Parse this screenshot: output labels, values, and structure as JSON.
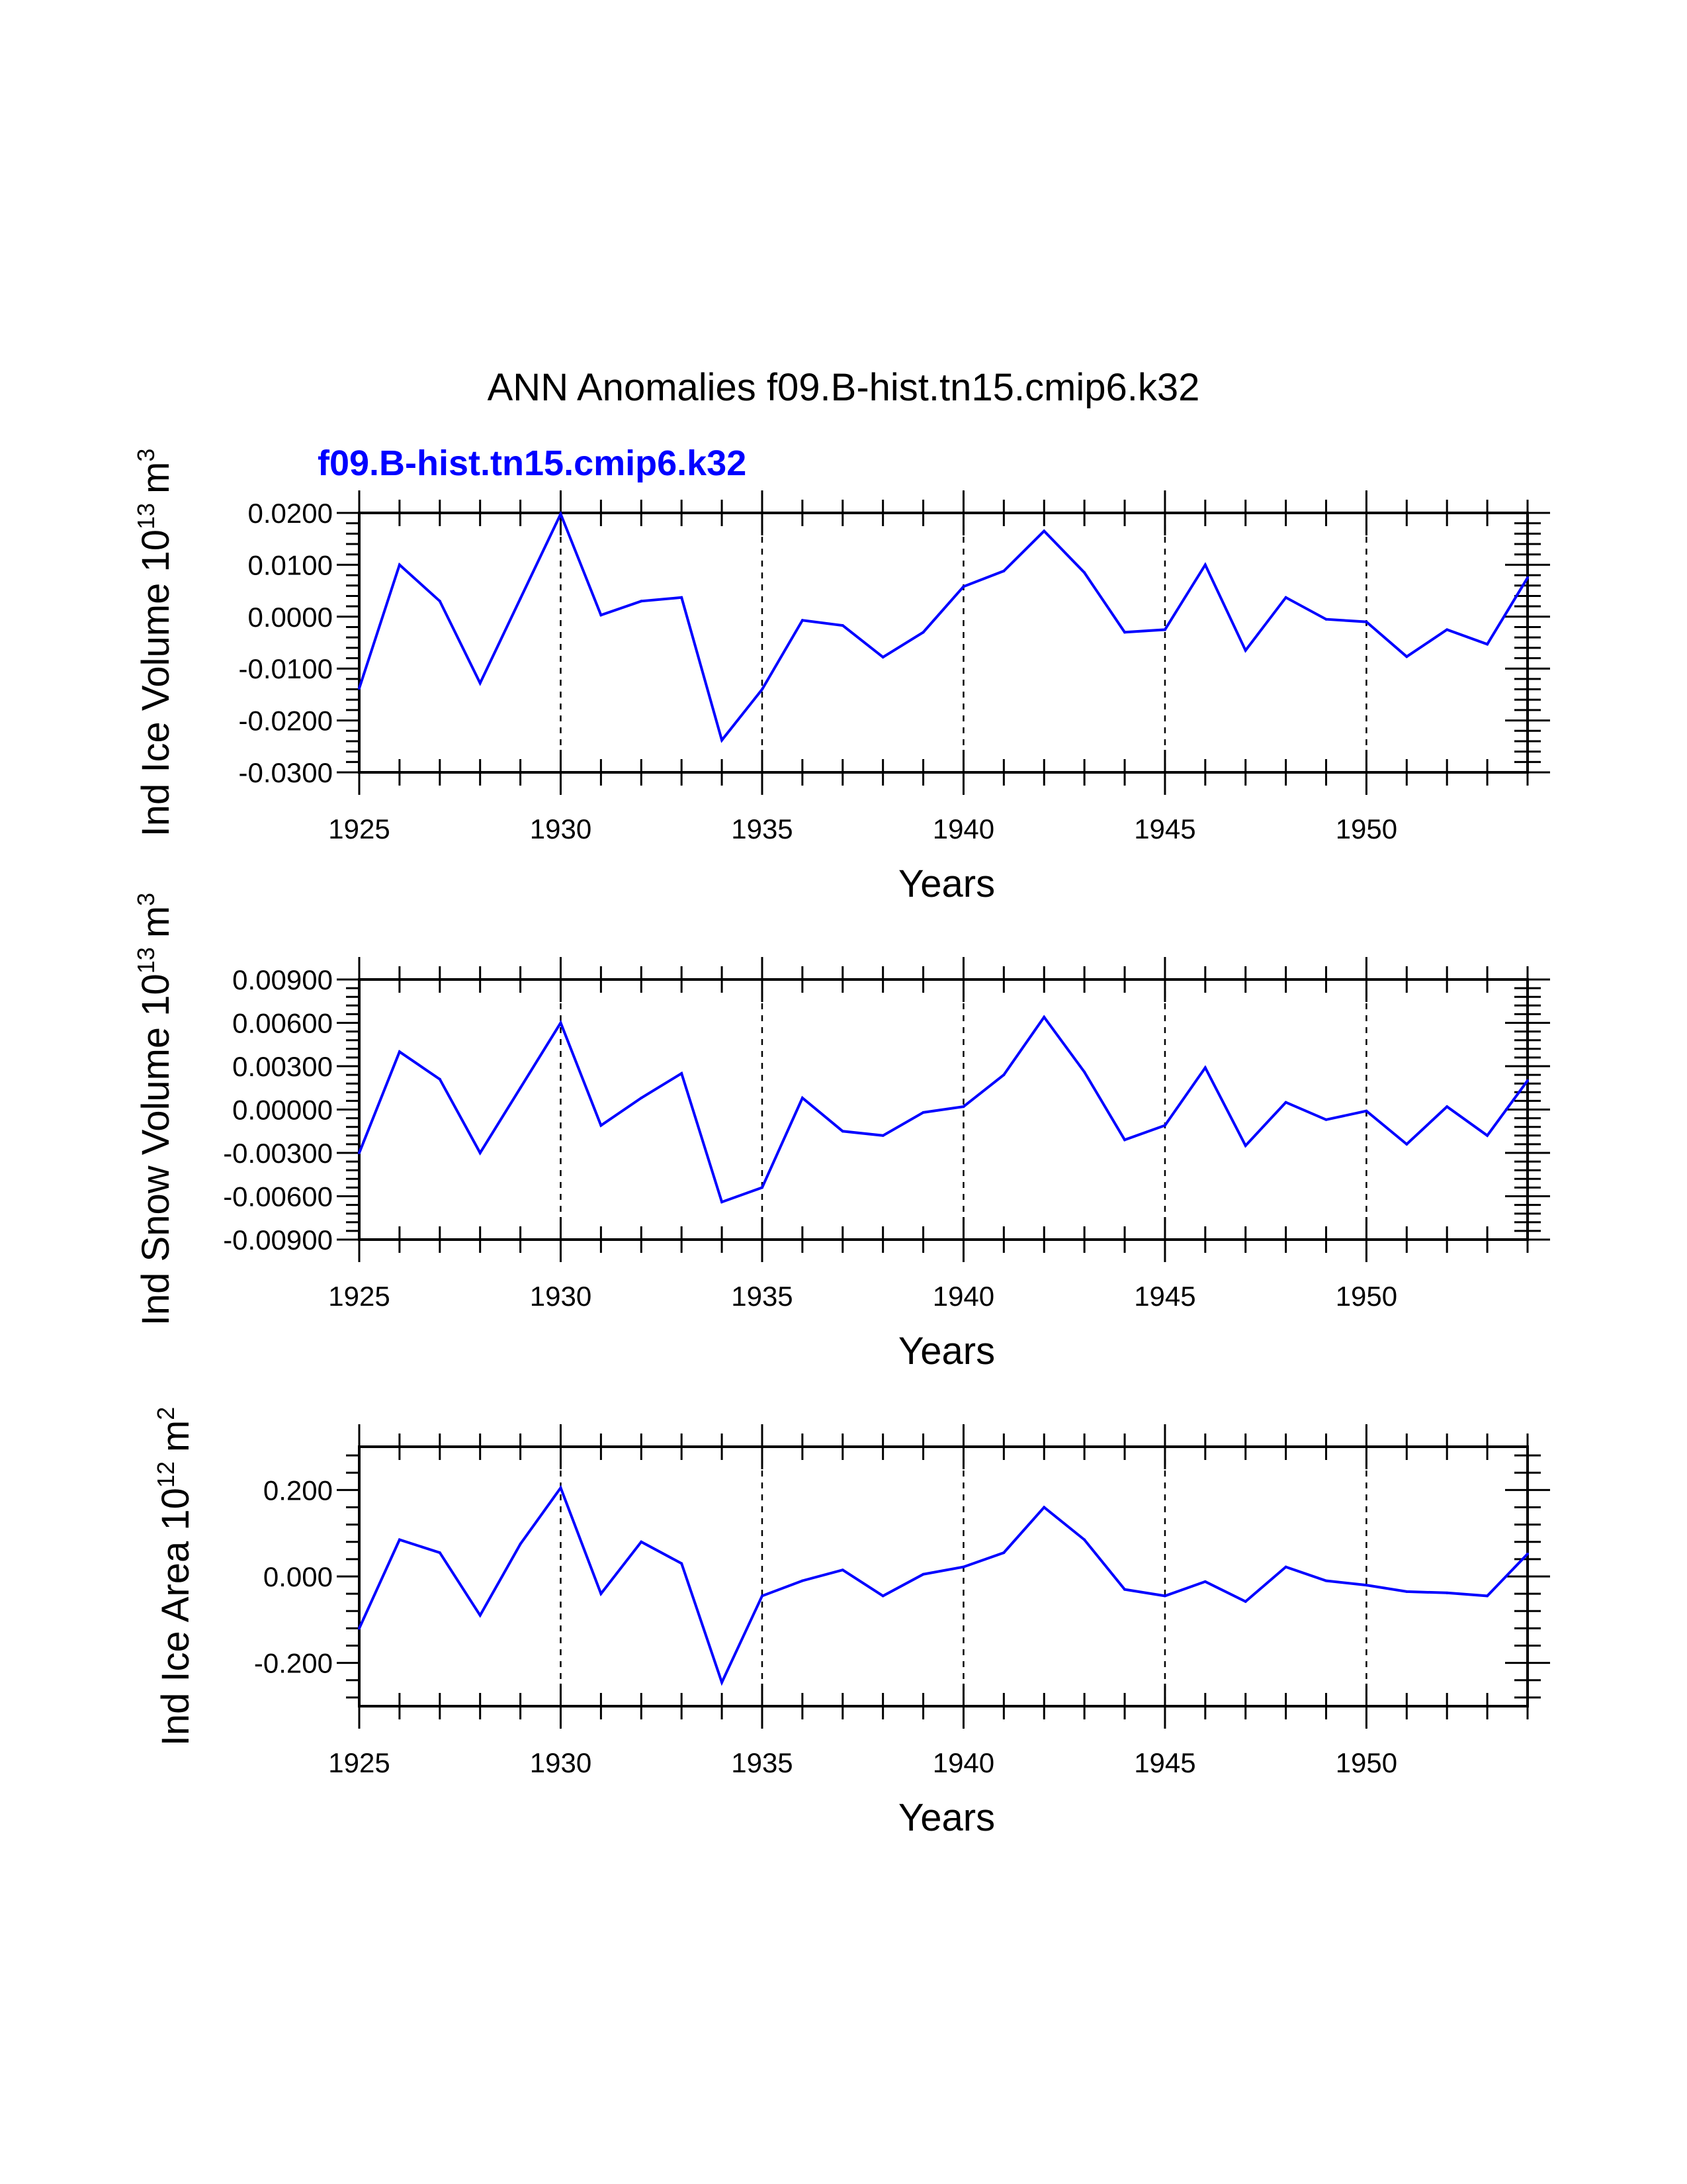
{
  "figure_title": "ANN Anomalies f09.B-hist.tn15.cmip6.k32",
  "case_label": "f09.B-hist.tn15.cmip6.k32",
  "colors": {
    "series": "#0000ff",
    "axes": "#000000"
  },
  "chart_data": [
    {
      "type": "line",
      "title": "",
      "ylabel": "Ind Ice Volume 10",
      "ylabel_exponent": "13",
      "ylabel_unit": "m",
      "ylabel_unit_exponent": "3",
      "xlabel": "Years",
      "xlim": [
        1925,
        1954
      ],
      "ylim": [
        -0.03,
        0.02
      ],
      "yticks": [
        -0.03,
        -0.02,
        -0.01,
        0.0,
        0.01,
        0.02
      ],
      "ytick_labels": [
        "-0.0300",
        "-0.0200",
        "-0.0100",
        "0.0000",
        "0.0100",
        "0.0200"
      ],
      "xticks": [
        1925,
        1930,
        1935,
        1940,
        1945,
        1950
      ],
      "xtick_labels": [
        "1925",
        "1930",
        "1935",
        "1940",
        "1945",
        "1950"
      ],
      "grid_x": [
        1930,
        1935,
        1940,
        1945,
        1950
      ],
      "series": [
        {
          "name": "f09.B-hist.tn15.cmip6.k32",
          "x": [
            1925,
            1926,
            1927,
            1928,
            1929,
            1930,
            1931,
            1932,
            1933,
            1934,
            1935,
            1936,
            1937,
            1938,
            1939,
            1940,
            1941,
            1942,
            1943,
            1944,
            1945,
            1946,
            1947,
            1948,
            1949,
            1950,
            1951,
            1952,
            1953,
            1954
          ],
          "values": [
            -0.0138,
            0.01,
            0.003,
            -0.0128,
            0.0035,
            0.0198,
            0.0003,
            0.003,
            0.0037,
            -0.0238,
            -0.014,
            -0.0007,
            -0.0017,
            -0.0078,
            -0.003,
            0.0058,
            0.0088,
            0.0165,
            0.0085,
            -0.003,
            -0.0025,
            0.01,
            -0.0065,
            0.0037,
            -0.0005,
            -0.001,
            -0.0077,
            -0.0025,
            -0.0053,
            0.0075
          ]
        }
      ]
    },
    {
      "type": "line",
      "title": "",
      "ylabel": "Ind Snow Volume 10",
      "ylabel_exponent": "13",
      "ylabel_unit": "m",
      "ylabel_unit_exponent": "3",
      "xlabel": "Years",
      "xlim": [
        1925,
        1954
      ],
      "ylim": [
        -0.009,
        0.009
      ],
      "yticks": [
        -0.009,
        -0.006,
        -0.003,
        0.0,
        0.003,
        0.006,
        0.009
      ],
      "ytick_labels": [
        "-0.00900",
        "-0.00600",
        "-0.00300",
        "0.00000",
        "0.00300",
        "0.00600",
        "0.00900"
      ],
      "xticks": [
        1925,
        1930,
        1935,
        1940,
        1945,
        1950
      ],
      "xtick_labels": [
        "1925",
        "1930",
        "1935",
        "1940",
        "1945",
        "1950"
      ],
      "grid_x": [
        1930,
        1935,
        1940,
        1945,
        1950
      ],
      "series": [
        {
          "name": "f09.B-hist.tn15.cmip6.k32",
          "x": [
            1925,
            1926,
            1927,
            1928,
            1929,
            1930,
            1931,
            1932,
            1933,
            1934,
            1935,
            1936,
            1937,
            1938,
            1939,
            1940,
            1941,
            1942,
            1943,
            1944,
            1945,
            1946,
            1947,
            1948,
            1949,
            1950,
            1951,
            1952,
            1953,
            1954
          ],
          "values": [
            -0.003,
            0.004,
            0.0021,
            -0.003,
            0.0015,
            0.006,
            -0.0011,
            0.0008,
            0.0025,
            -0.0064,
            -0.0054,
            0.0008,
            -0.0015,
            -0.0018,
            -0.0002,
            0.0002,
            0.0024,
            0.0064,
            0.0026,
            -0.0021,
            -0.0011,
            0.0029,
            -0.0025,
            0.0005,
            -0.0007,
            -0.0001,
            -0.0024,
            0.0002,
            -0.0018,
            0.002
          ]
        }
      ]
    },
    {
      "type": "line",
      "title": "",
      "ylabel": "Ind Ice Area 10",
      "ylabel_exponent": "12",
      "ylabel_unit": "m",
      "ylabel_unit_exponent": "2",
      "xlabel": "Years",
      "xlim": [
        1925,
        1954
      ],
      "ylim": [
        -0.3,
        0.3
      ],
      "yticks": [
        -0.2,
        0.0,
        0.2
      ],
      "ytick_labels": [
        "-0.200",
        "0.000",
        "0.200"
      ],
      "xticks": [
        1925,
        1930,
        1935,
        1940,
        1945,
        1950
      ],
      "xtick_labels": [
        "1925",
        "1930",
        "1935",
        "1940",
        "1945",
        "1950"
      ],
      "grid_x": [
        1930,
        1935,
        1940,
        1945,
        1950
      ],
      "series": [
        {
          "name": "f09.B-hist.tn15.cmip6.k32",
          "x": [
            1925,
            1926,
            1927,
            1928,
            1929,
            1930,
            1931,
            1932,
            1933,
            1934,
            1935,
            1936,
            1937,
            1938,
            1939,
            1940,
            1941,
            1942,
            1943,
            1944,
            1945,
            1946,
            1947,
            1948,
            1949,
            1950,
            1951,
            1952,
            1953,
            1954
          ],
          "values": [
            -0.12,
            0.085,
            0.055,
            -0.09,
            0.075,
            0.205,
            -0.04,
            0.08,
            0.03,
            -0.245,
            -0.045,
            -0.01,
            0.015,
            -0.045,
            0.005,
            0.022,
            0.055,
            0.16,
            0.085,
            -0.03,
            -0.045,
            -0.012,
            -0.058,
            0.022,
            -0.01,
            -0.02,
            -0.035,
            -0.038,
            -0.045,
            0.052
          ]
        }
      ]
    }
  ]
}
